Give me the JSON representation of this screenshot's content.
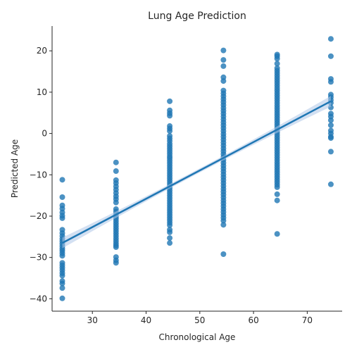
{
  "chart_data": {
    "type": "scatter",
    "title": "Lung Age Prediction",
    "xlabel": "Chronological Age",
    "ylabel": "Predicted Age",
    "xlim": [
      22.5,
      76.5
    ],
    "ylim": [
      -43,
      26
    ],
    "xticks": [
      30,
      40,
      50,
      60,
      70
    ],
    "yticks": [
      -40,
      -30,
      -20,
      -10,
      0,
      10,
      20
    ],
    "tick_labels_x": [
      "30",
      "40",
      "50",
      "60",
      "70"
    ],
    "tick_labels_y": [
      "−40",
      "−30",
      "−20",
      "−10",
      "0",
      "10",
      "20"
    ],
    "grid": false,
    "colors": {
      "points": "#1f77b4",
      "line": "#1f77b4",
      "ci_band": "#aec7e8"
    },
    "regression": {
      "x": [
        24.4,
        74.4
      ],
      "y": [
        -26.5,
        7.8
      ],
      "ci_halfwidth_end": 1.3,
      "ci_halfwidth_mid": 0.5
    },
    "groups": [
      {
        "x": 24.4,
        "y": [
          -11.2,
          -15.4,
          -17.4,
          -18.2,
          -19.1,
          -19.9,
          -20.5,
          -23.3,
          -24.1,
          -24.8,
          -25.5,
          -26.1,
          -26.7,
          -27.3,
          -27.9,
          -28.4,
          -29.0,
          -29.6,
          -31.3,
          -31.9,
          -32.5,
          -33.1,
          -33.8,
          -34.4,
          -35.7,
          -36.3,
          -37.4,
          -39.9
        ]
      },
      {
        "x": 34.4,
        "y": [
          -7.0,
          -9.1,
          -11.3,
          -12.0,
          -12.8,
          -13.6,
          -14.4,
          -15.2,
          -15.9,
          -16.7,
          -18.3,
          -18.9,
          -19.5,
          -20.1,
          -20.6,
          -21.2,
          -21.8,
          -22.4,
          -23.0,
          -23.6,
          -24.2,
          -24.8,
          -25.4,
          -26.0,
          -26.6,
          -27.1,
          -27.5,
          -29.9,
          -30.7,
          -31.3
        ]
      },
      {
        "x": 44.4,
        "y": [
          7.8,
          5.6,
          4.9,
          4.3,
          1.8,
          1.2,
          0.6,
          -0.6,
          -1.2,
          -1.8,
          -2.5,
          -3.1,
          -3.7,
          -4.3,
          -4.9,
          -5.5,
          -6.0,
          -6.6,
          -7.2,
          -7.8,
          -8.4,
          -9.0,
          -9.6,
          -10.2,
          -10.8,
          -11.4,
          -12.0,
          -12.6,
          -13.2,
          -13.8,
          -14.4,
          -15.0,
          -15.6,
          -16.2,
          -16.8,
          -17.4,
          -18.0,
          -18.6,
          -19.2,
          -19.8,
          -20.4,
          -21.0,
          -21.6,
          -22.2,
          -23.3,
          -23.9,
          -25.3,
          -26.5
        ]
      },
      {
        "x": 54.4,
        "y": [
          20.1,
          17.8,
          16.3,
          13.6,
          12.7,
          10.4,
          9.7,
          9.0,
          8.3,
          7.6,
          6.9,
          6.2,
          5.5,
          4.8,
          4.1,
          3.4,
          2.7,
          2.0,
          1.3,
          0.6,
          -0.1,
          -0.8,
          -1.5,
          -2.2,
          -2.9,
          -3.6,
          -4.3,
          -5.0,
          -5.7,
          -6.4,
          -7.1,
          -7.8,
          -8.5,
          -9.2,
          -9.9,
          -10.6,
          -11.3,
          -12.0,
          -12.7,
          -13.4,
          -14.1,
          -14.8,
          -15.5,
          -16.2,
          -16.9,
          -17.6,
          -18.3,
          -19.0,
          -19.7,
          -20.4,
          -21.1,
          -22.1,
          -29.2
        ]
      },
      {
        "x": 64.4,
        "y": [
          19.1,
          18.7,
          18.1,
          16.9,
          15.8,
          15.2,
          14.6,
          14.0,
          13.4,
          12.8,
          12.2,
          11.6,
          11.0,
          10.4,
          9.8,
          9.2,
          8.6,
          8.0,
          7.4,
          6.8,
          6.2,
          5.6,
          5.0,
          4.4,
          3.8,
          3.2,
          2.6,
          2.0,
          1.4,
          0.8,
          0.2,
          -0.4,
          -1.0,
          -1.6,
          -2.2,
          -2.8,
          -3.4,
          -4.0,
          -4.6,
          -5.2,
          -5.8,
          -6.4,
          -7.0,
          -7.6,
          -8.2,
          -8.8,
          -9.4,
          -10.0,
          -10.6,
          -11.2,
          -11.8,
          -12.4,
          -13.0,
          -14.7,
          -16.2,
          -24.3
        ]
      },
      {
        "x": 74.4,
        "y": [
          22.9,
          18.7,
          13.2,
          12.5,
          9.4,
          8.8,
          8.1,
          7.4,
          6.3,
          4.8,
          4.1,
          3.2,
          2.0,
          0.7,
          0.0,
          -0.8,
          -1.1,
          -4.4,
          -12.3
        ]
      }
    ]
  }
}
